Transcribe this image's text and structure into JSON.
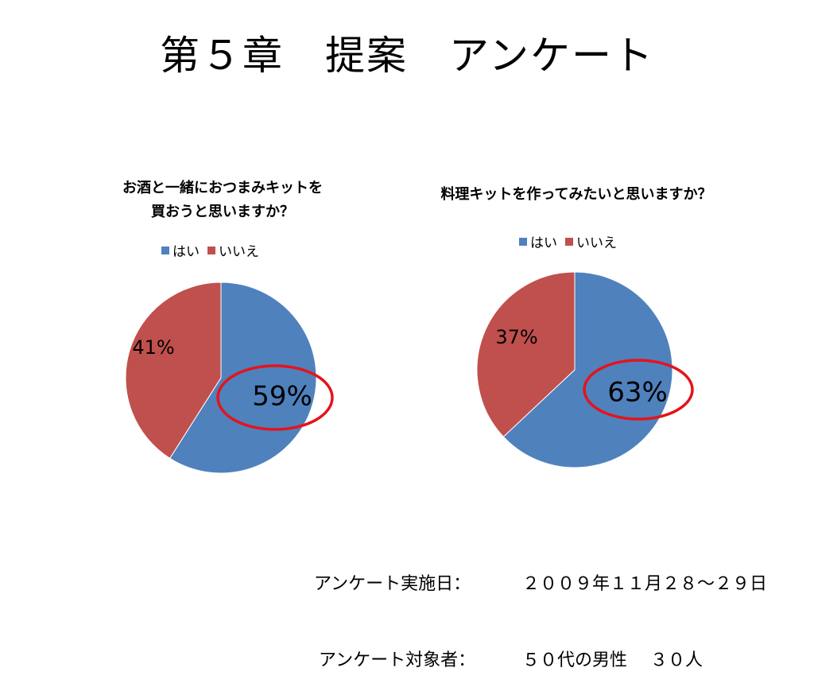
{
  "slide": {
    "title": "第５章　提案　アンケート"
  },
  "colors": {
    "yes": "#4f81bd",
    "no": "#c0504d",
    "highlight": "#e3141b"
  },
  "chart_data": [
    {
      "type": "pie",
      "title_lines": [
        "お酒と一緒におつまみキットを",
        "買おうと思いますか？"
      ],
      "legend": [
        "はい",
        "いいえ"
      ],
      "categories": [
        "はい",
        "いいえ"
      ],
      "values": [
        59,
        41
      ],
      "labels": [
        "59%",
        "41%"
      ],
      "highlighted": "はい"
    },
    {
      "type": "pie",
      "title_lines": [
        "料理キットを作ってみたいと思いますか？"
      ],
      "legend": [
        "はい",
        "いいえ"
      ],
      "categories": [
        "はい",
        "いいえ"
      ],
      "values": [
        63,
        37
      ],
      "labels": [
        "63%",
        "37%"
      ],
      "highlighted": "はい"
    }
  ],
  "survey": {
    "date_label": "アンケート実施日：",
    "date_value": "２００９年１１月２８～２９日",
    "target_label": "アンケート対象者：",
    "target_value": "５０代の男性　 ３０人"
  }
}
